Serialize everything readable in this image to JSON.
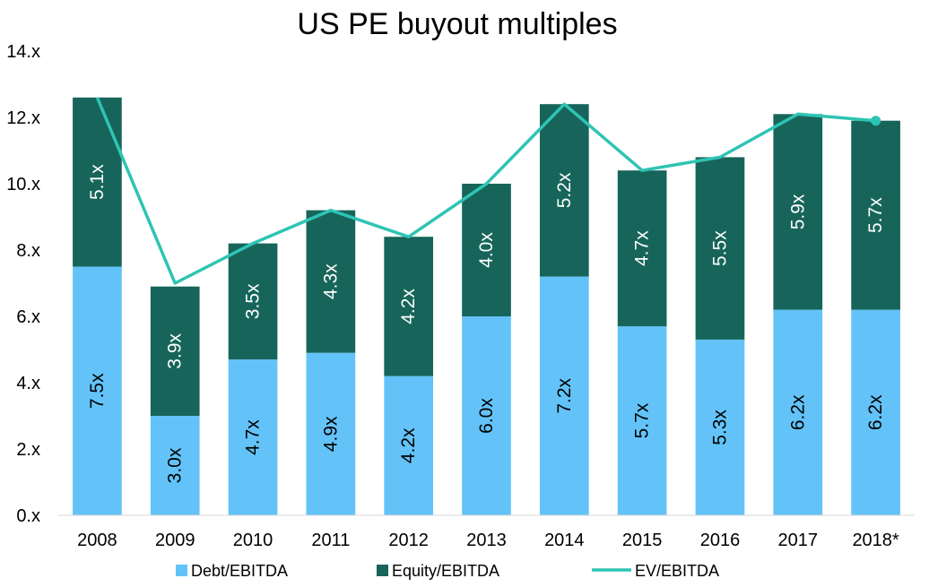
{
  "chart_data": {
    "type": "bar",
    "stacked": true,
    "title": "US PE buyout multiples",
    "categories": [
      "2008",
      "2009",
      "2010",
      "2011",
      "2012",
      "2013",
      "2014",
      "2015",
      "2016",
      "2017",
      "2018*"
    ],
    "series": [
      {
        "name": "Debt/EBITDA",
        "kind": "bar",
        "color": "#63c3f8",
        "values": [
          7.5,
          3.0,
          4.7,
          4.9,
          4.2,
          6.0,
          7.2,
          5.7,
          5.3,
          6.2,
          6.2
        ],
        "labels": [
          "7.5x",
          "3.0x",
          "4.7x",
          "4.9x",
          "4.2x",
          "6.0x",
          "7.2x",
          "5.7x",
          "5.3x",
          "6.2x",
          "6.2x"
        ],
        "label_color": "#000000"
      },
      {
        "name": "Equity/EBITDA",
        "kind": "bar",
        "color": "#17655a",
        "values": [
          5.1,
          3.9,
          3.5,
          4.3,
          4.2,
          4.0,
          5.2,
          4.7,
          5.5,
          5.9,
          5.7
        ],
        "labels": [
          "5.1x",
          "3.9x",
          "3.5x",
          "4.3x",
          "4.2x",
          "4.0x",
          "5.2x",
          "4.7x",
          "5.5x",
          "5.9x",
          "5.7x"
        ],
        "label_color": "#ffffff"
      },
      {
        "name": "EV/EBITDA",
        "kind": "line",
        "color": "#2ec4b4",
        "values": [
          12.6,
          7.0,
          8.2,
          9.2,
          8.4,
          10.0,
          12.4,
          10.4,
          10.8,
          12.1,
          11.9
        ]
      }
    ],
    "yticks": [
      "0.x",
      "2.x",
      "4.x",
      "6.x",
      "8.x",
      "10.x",
      "12.x",
      "14.x"
    ],
    "ylim": [
      0,
      14
    ],
    "grid": false,
    "legend": "bottom"
  }
}
